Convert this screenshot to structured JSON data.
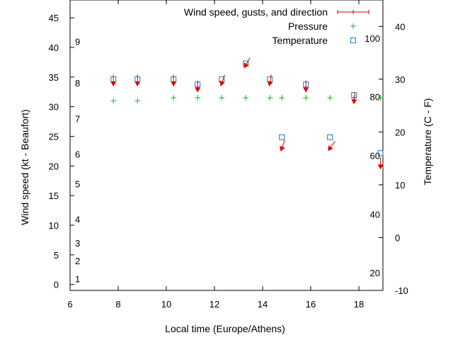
{
  "chart_data": {
    "type": "scatter",
    "xlabel": "Local time (Europe/Athens)",
    "ylabel_left": "Wind speed (kt - Beaufort)",
    "ylabel_right": "Temperature (C - F)",
    "x_ticks": [
      "6",
      "8",
      "10",
      "12",
      "14",
      "16",
      "18"
    ],
    "y_left_ticks": [
      "0",
      "5",
      "10",
      "15",
      "20",
      "25",
      "30",
      "35",
      "40",
      "45"
    ],
    "y_right_ticks": [
      "-10",
      "0",
      "10",
      "20",
      "30",
      "40"
    ],
    "beaufort_labels": [
      "1",
      "2",
      "3",
      "4",
      "5",
      "6",
      "7",
      "8",
      "9"
    ],
    "fahrenheit_labels": [
      "20",
      "40",
      "60",
      "80",
      "100"
    ],
    "xlim": [
      6,
      19
    ],
    "ylim_left": [
      -1,
      48
    ],
    "ylim_right": [
      -10,
      45
    ],
    "legend": [
      {
        "label": "Wind speed, gusts, and direction",
        "marker": "errorbar",
        "color": "#dd0000"
      },
      {
        "label": "Pressure",
        "marker": "plus",
        "color": "#22aa22"
      },
      {
        "label": "Temperature",
        "marker": "square",
        "color": "#1a78c8"
      }
    ],
    "series": [
      {
        "name": "Wind speed, gusts, and direction",
        "unit": "kt",
        "x": [
          7.8,
          8.8,
          10.3,
          11.3,
          12.3,
          13.3,
          14.3,
          14.8,
          15.8,
          16.8,
          17.8,
          18.9
        ],
        "y": [
          34.0,
          34.0,
          34.0,
          33.0,
          34.0,
          37.0,
          34.0,
          23.0,
          33.0,
          23.0,
          31.0,
          20.0
        ],
        "direction_deg": [
          180,
          180,
          180,
          180,
          200,
          210,
          190,
          200,
          180,
          215,
          185,
          180
        ]
      },
      {
        "name": "Pressure",
        "x": [
          7.8,
          8.8,
          10.3,
          11.3,
          12.3,
          13.3,
          14.3,
          14.8,
          15.8,
          16.8,
          17.8,
          18.9
        ],
        "y": [
          31.0,
          31.0,
          31.5,
          31.5,
          31.5,
          31.5,
          31.5,
          31.5,
          31.5,
          31.5,
          31.5,
          31.5
        ]
      },
      {
        "name": "Temperature",
        "unit": "C",
        "x": [
          7.8,
          8.8,
          10.3,
          11.3,
          12.3,
          13.3,
          14.3,
          14.8,
          15.8,
          16.8,
          17.8,
          18.9
        ],
        "y": [
          30.0,
          30.0,
          30.0,
          29.0,
          30.0,
          33.0,
          30.0,
          19.0,
          29.0,
          19.0,
          27.0,
          16.0
        ]
      }
    ]
  }
}
